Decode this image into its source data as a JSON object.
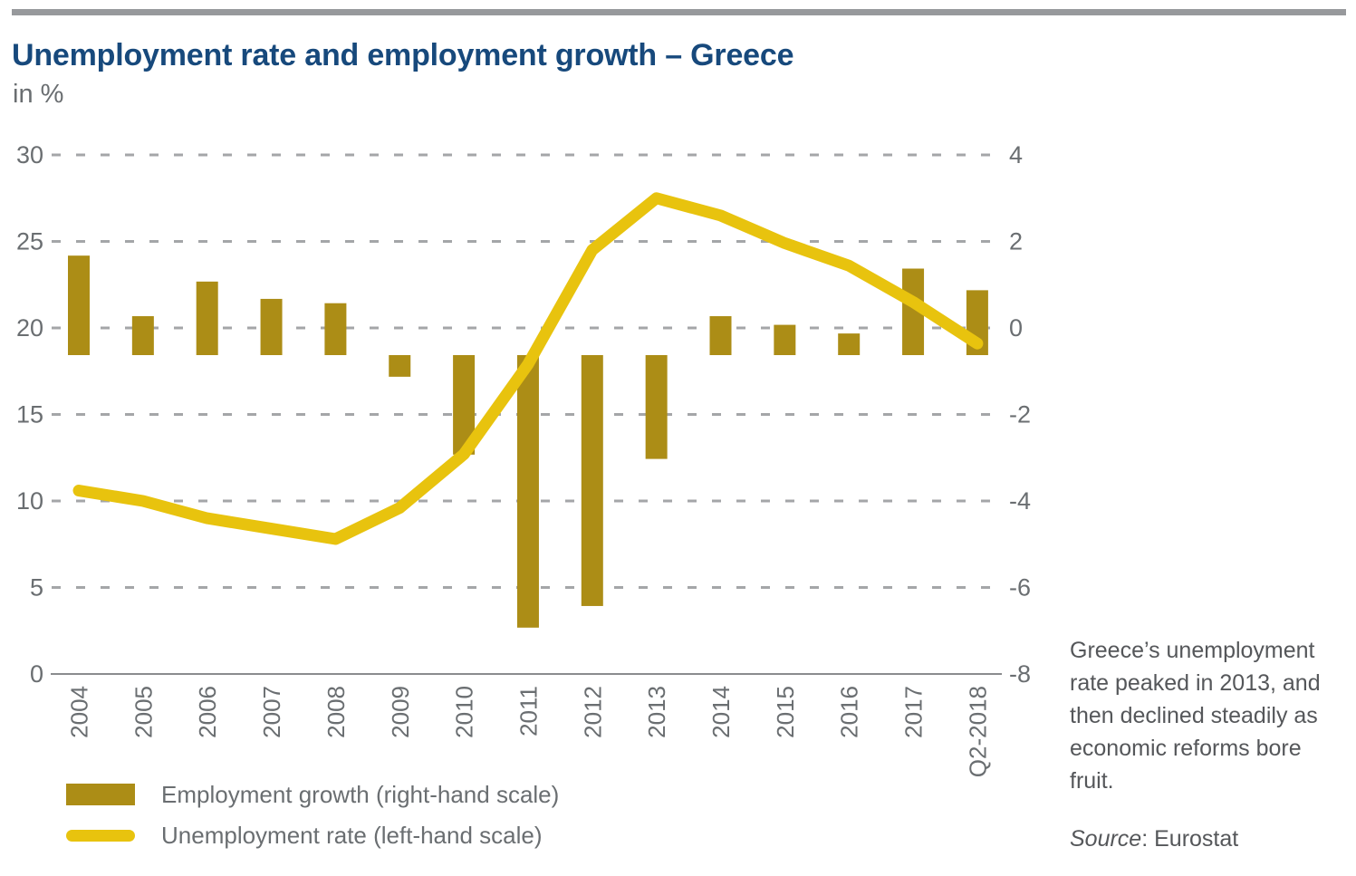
{
  "page": {
    "title": "Unemployment rate and employment growth – Greece",
    "subtitle": "in %",
    "note": "Greece’s unemployment rate peaked in 2013, and then declined steadily as economic reforms bore fruit.",
    "source_label": "Source",
    "source_rest": ": Eurostat"
  },
  "legend": [
    {
      "id": "employment-growth",
      "swatch": "bar-swatch-icon",
      "label": "Employment growth (right-hand scale)"
    },
    {
      "id": "unemployment-rate",
      "swatch": "line-swatch-icon",
      "label": "Unemployment rate (left-hand scale)"
    }
  ],
  "colors": {
    "bar": "#ac8d16",
    "line": "#e8c30e",
    "title": "#17497c",
    "subtitle": "#6a6e71",
    "axis_text": "#6a6e71",
    "grid": "#a4a6a8",
    "axis_line": "#8a8c8e",
    "note_text": "#55575a",
    "top_rule": "#97999c",
    "background": "#ffffff"
  },
  "chart_data": {
    "type": "combo",
    "categories": [
      "2004",
      "2005",
      "2006",
      "2007",
      "2008",
      "2009",
      "2010",
      "2011",
      "2012",
      "2013",
      "2014",
      "2015",
      "2016",
      "2017",
      "Q2-2018"
    ],
    "series": [
      {
        "name": "Employment growth (right-hand scale)",
        "type": "bar",
        "axis": "right",
        "values": [
          2.3,
          0.9,
          1.7,
          1.3,
          1.2,
          -0.5,
          -2.3,
          -6.3,
          -5.8,
          -2.4,
          0.9,
          0.7,
          0.5,
          2.0,
          1.5
        ]
      },
      {
        "name": "Unemployment rate (left-hand scale)",
        "type": "line",
        "axis": "left",
        "values": [
          10.6,
          10.0,
          9.0,
          8.4,
          7.8,
          9.6,
          12.7,
          17.9,
          24.5,
          27.5,
          26.5,
          24.9,
          23.6,
          21.5,
          19.1
        ]
      }
    ],
    "left_axis": {
      "ticks": [
        30,
        25,
        20,
        15,
        10,
        5,
        0
      ],
      "min": 0,
      "max": 30
    },
    "right_axis": {
      "ticks": [
        4,
        2,
        0,
        -2,
        -4,
        -6,
        -8
      ],
      "min": -8,
      "max": 4
    },
    "grid": "horizontal-dashed",
    "legend_position": "bottom-left"
  }
}
